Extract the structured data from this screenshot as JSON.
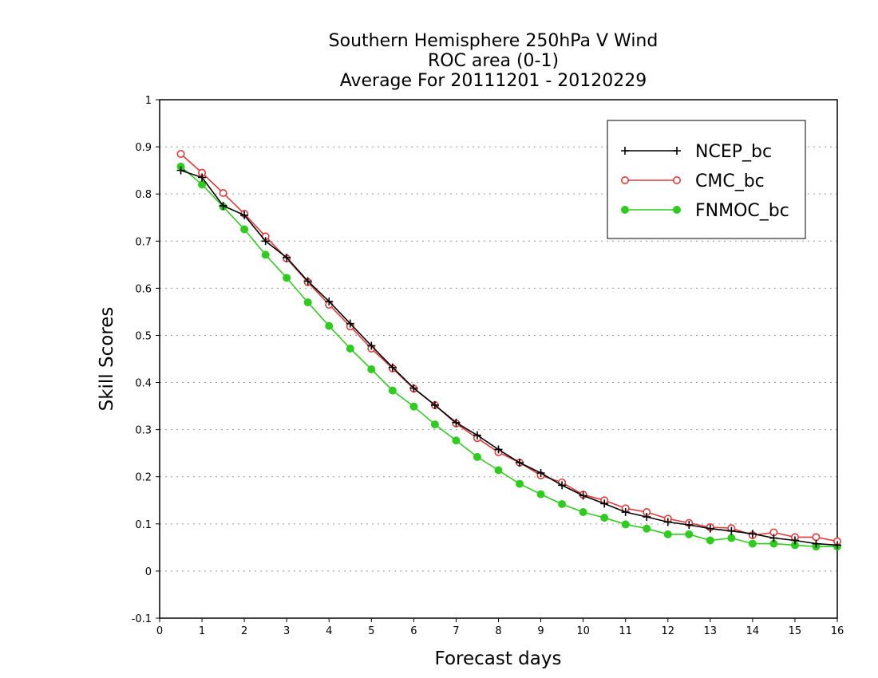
{
  "chart_data": {
    "type": "line",
    "title": [
      "Southern Hemisphere 250hPa V Wind",
      "ROC area (0-1)",
      "Average For 20111201 - 20120229"
    ],
    "xlabel": "Forecast days",
    "ylabel": "Skill Scores",
    "xlim": [
      0,
      16
    ],
    "ylim": [
      -0.1,
      1
    ],
    "x_ticks": [
      0,
      1,
      2,
      3,
      4,
      5,
      6,
      7,
      8,
      9,
      10,
      11,
      12,
      13,
      14,
      15,
      16
    ],
    "y_ticks": [
      -0.1,
      0,
      0.1,
      0.2,
      0.3,
      0.4,
      0.5,
      0.6,
      0.7,
      0.8,
      0.9,
      1
    ],
    "y_tick_labels": [
      "-0.1",
      "0",
      "0.1",
      "0.2",
      "0.3",
      "0.4",
      "0.5",
      "0.6",
      "0.7",
      "0.8",
      "0.9",
      "1"
    ],
    "grid": true,
    "legend_position": "top-right",
    "x": [
      0.5,
      1,
      1.5,
      2,
      2.5,
      3,
      3.5,
      4,
      4.5,
      5,
      5.5,
      6,
      6.5,
      7,
      7.5,
      8,
      8.5,
      9,
      9.5,
      10,
      10.5,
      11,
      11.5,
      12,
      12.5,
      13,
      13.5,
      14,
      14.5,
      15,
      15.5,
      16
    ],
    "series": [
      {
        "name": "NCEP_bc",
        "color": "#000000",
        "marker": "plus",
        "values": [
          0.85,
          0.835,
          0.775,
          0.755,
          0.7,
          0.665,
          0.615,
          0.572,
          0.525,
          0.478,
          0.432,
          0.388,
          0.352,
          0.315,
          0.288,
          0.258,
          0.23,
          0.208,
          0.182,
          0.16,
          0.143,
          0.125,
          0.115,
          0.104,
          0.098,
          0.09,
          0.085,
          0.079,
          0.07,
          0.065,
          0.058,
          0.055
        ]
      },
      {
        "name": "CMC_bc",
        "color": "#e23a3a",
        "marker": "open-circle",
        "values": [
          0.885,
          0.845,
          0.802,
          0.758,
          0.71,
          0.663,
          0.613,
          0.565,
          0.519,
          0.472,
          0.43,
          0.387,
          0.352,
          0.313,
          0.282,
          0.252,
          0.23,
          0.203,
          0.188,
          0.162,
          0.15,
          0.133,
          0.125,
          0.111,
          0.102,
          0.093,
          0.091,
          0.076,
          0.082,
          0.072,
          0.072,
          0.063
        ]
      },
      {
        "name": "FNMOC_bc",
        "color": "#2ecc1f",
        "marker": "filled-circle",
        "values": [
          0.858,
          0.82,
          0.773,
          0.725,
          0.671,
          0.622,
          0.57,
          0.52,
          0.472,
          0.428,
          0.383,
          0.349,
          0.311,
          0.277,
          0.242,
          0.214,
          0.185,
          0.163,
          0.142,
          0.125,
          0.113,
          0.099,
          0.09,
          0.078,
          0.078,
          0.065,
          0.07,
          0.058,
          0.058,
          0.055,
          0.052,
          0.052
        ]
      }
    ]
  }
}
